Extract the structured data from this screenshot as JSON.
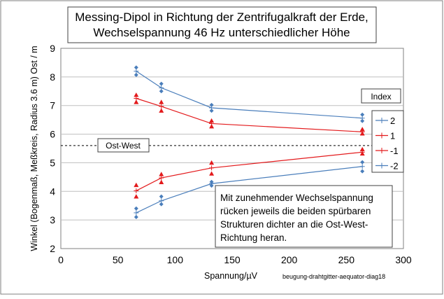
{
  "chart_data": {
    "type": "line",
    "title_lines": [
      "Messing-Dipol in Richtung der Zentrifugalkraft der Erde,",
      "Wechselspannung 46 Hz unterschiedlicher Höhe"
    ],
    "xlabel": "Spannung/µV",
    "ylabel": "Winkel (Bogenmaß, Meßkreis, Radius 3.6 m)  Ost / m",
    "xlim": [
      0,
      300
    ],
    "ylim": [
      2,
      9
    ],
    "x_ticks": [
      "0",
      "50",
      "100",
      "150",
      "200",
      "250",
      "300"
    ],
    "y_ticks": [
      "2",
      "3",
      "4",
      "5",
      "6",
      "7",
      "8",
      "9"
    ],
    "grid": true,
    "legend_title": "Index",
    "legend_position": "right",
    "reference_line": {
      "label": "Ost-West",
      "y": 5.6
    },
    "annotation_lines": [
      "Mit zunehmender  Wechselspannung",
      "rücken jeweils die beiden spürbaren",
      "Strukturen  dichter an die Ost-West-",
      "Richtung heran."
    ],
    "footnote": "beugung-drahtgitter-aequator-diag18",
    "series": [
      {
        "name": "2",
        "color": "#4a7ebb",
        "marker": "diamond",
        "line": {
          "x": [
            66,
            88,
            132,
            264
          ],
          "y": [
            8.2,
            7.62,
            6.92,
            6.56
          ]
        },
        "points": {
          "x": [
            66,
            66,
            88,
            88,
            132,
            132,
            264,
            264
          ],
          "y": [
            8.33,
            8.07,
            7.76,
            7.5,
            7.02,
            6.82,
            6.68,
            6.46
          ]
        }
      },
      {
        "name": "1",
        "color": "#e31a1c",
        "marker": "triangle",
        "line": {
          "x": [
            66,
            88,
            132,
            264
          ],
          "y": [
            7.25,
            6.97,
            6.37,
            6.08
          ]
        },
        "points": {
          "x": [
            66,
            66,
            88,
            88,
            132,
            132,
            264,
            264
          ],
          "y": [
            7.37,
            7.12,
            7.12,
            6.82,
            6.47,
            6.27,
            6.17,
            6.02
          ]
        }
      },
      {
        "name": "-1",
        "color": "#e31a1c",
        "marker": "triangle",
        "line": {
          "x": [
            66,
            88,
            132,
            264
          ],
          "y": [
            4.02,
            4.47,
            4.82,
            5.37
          ]
        },
        "points": {
          "x": [
            66,
            66,
            88,
            88,
            132,
            132,
            264,
            264
          ],
          "y": [
            4.22,
            3.82,
            4.6,
            4.32,
            5.0,
            4.62,
            5.47,
            5.32
          ]
        }
      },
      {
        "name": "-2",
        "color": "#4a7ebb",
        "marker": "diamond",
        "line": {
          "x": [
            66,
            88,
            132,
            264
          ],
          "y": [
            3.25,
            3.67,
            4.27,
            4.87
          ]
        },
        "points": {
          "x": [
            66,
            66,
            88,
            88,
            132,
            132,
            264,
            264
          ],
          "y": [
            3.4,
            3.1,
            3.82,
            3.55,
            4.33,
            4.2,
            5.02,
            4.7
          ]
        }
      }
    ]
  }
}
